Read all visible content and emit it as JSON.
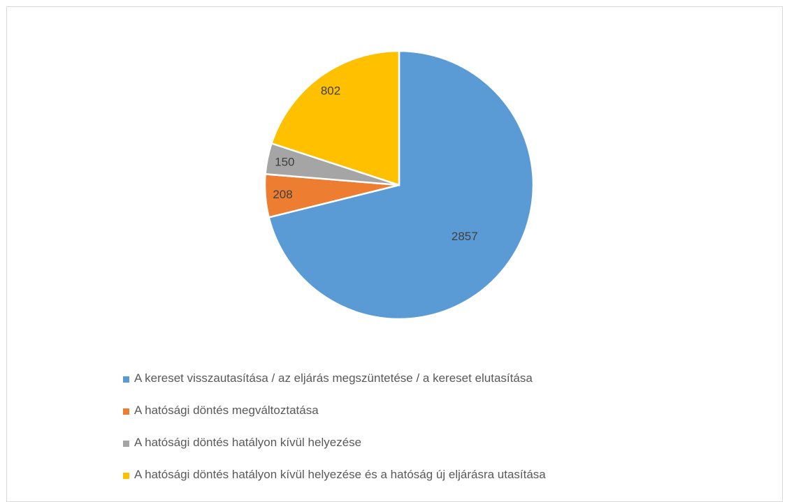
{
  "chart_data": {
    "type": "pie",
    "slices": [
      {
        "label": "A kereset visszautasítása / az eljárás megszüntetése / a kereset elutasítása",
        "value": 2857,
        "color": "#5b9bd5"
      },
      {
        "label": "A hatósági döntés megváltoztatása",
        "value": 208,
        "color": "#ed7d31"
      },
      {
        "label": "A hatósági döntés hatályon kívül helyezése",
        "value": 150,
        "color": "#a5a5a5"
      },
      {
        "label": "A hatósági döntés hatályon kívül helyezése és a hatóság új eljárásra utasítása",
        "value": 802,
        "color": "#ffc000"
      }
    ],
    "data_labels": [
      "2857",
      "208",
      "150",
      "802"
    ],
    "start_angle": "12 o'clock",
    "direction": "clockwise",
    "legend_position": "bottom",
    "title": ""
  }
}
